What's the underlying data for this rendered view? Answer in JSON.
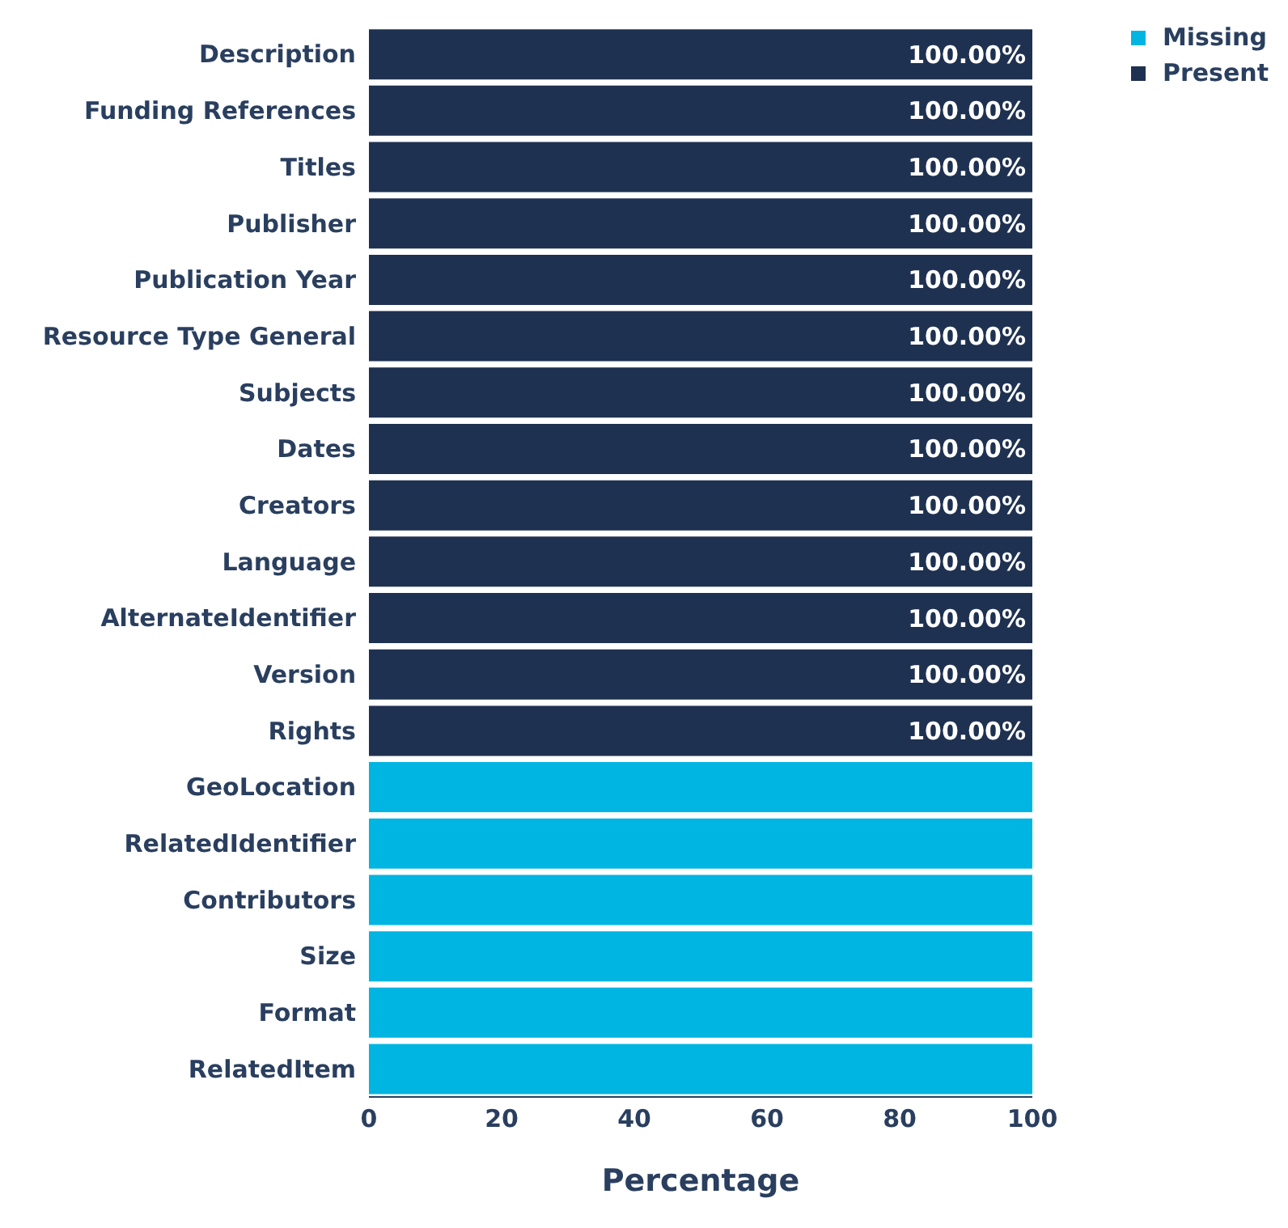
{
  "chart_data": {
    "type": "bar",
    "orientation": "horizontal",
    "stacked": true,
    "categories": [
      "Description",
      "Funding References",
      "Titles",
      "Publisher",
      "Publication Year",
      "Resource Type General",
      "Subjects",
      "Dates",
      "Creators",
      "Language",
      "AlternateIdentifier",
      "Version",
      "Rights",
      "GeoLocation",
      "RelatedIdentifier",
      "Contributors",
      "Size",
      "Format",
      "RelatedItem"
    ],
    "series": [
      {
        "name": "Missing",
        "color": "#00b5e2",
        "values": [
          0,
          0,
          0,
          0,
          0,
          0,
          0,
          0,
          0,
          0,
          0,
          0,
          0,
          100,
          100,
          100,
          100,
          100,
          100
        ]
      },
      {
        "name": "Present",
        "color": "#1f3150",
        "values": [
          100,
          100,
          100,
          100,
          100,
          100,
          100,
          100,
          100,
          100,
          100,
          100,
          100,
          0,
          0,
          0,
          0,
          0,
          0
        ],
        "value_labels": [
          "100.00%",
          "100.00%",
          "100.00%",
          "100.00%",
          "100.00%",
          "100.00%",
          "100.00%",
          "100.00%",
          "100.00%",
          "100.00%",
          "100.00%",
          "100.00%",
          "100.00%",
          null,
          null,
          null,
          null,
          null,
          null
        ]
      }
    ],
    "xlim": [
      0,
      100
    ],
    "xticks": [
      0,
      20,
      40,
      60,
      80,
      100
    ],
    "xlabel": "Percentage",
    "legend": "top right",
    "grid": false
  }
}
